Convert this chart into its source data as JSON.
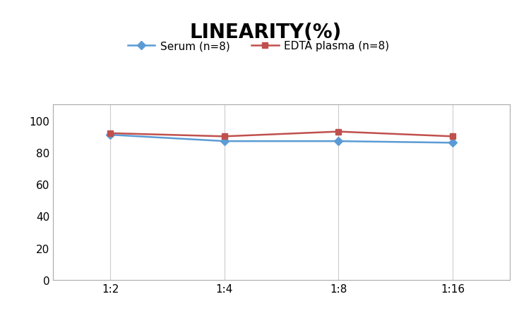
{
  "title": "LINEARITY(%)",
  "x_labels": [
    "1:2",
    "1:4",
    "1:8",
    "1:16"
  ],
  "x_positions": [
    0,
    1,
    2,
    3
  ],
  "serum_values": [
    91,
    87,
    87,
    86
  ],
  "edta_values": [
    92,
    90,
    93,
    90
  ],
  "serum_label": "Serum (n=8)",
  "edta_label": "EDTA plasma (n=8)",
  "serum_color": "#5b9bd5",
  "edta_color": "#c0504d",
  "ylim": [
    0,
    110
  ],
  "yticks": [
    0,
    20,
    40,
    60,
    80,
    100
  ],
  "title_fontsize": 20,
  "legend_fontsize": 11,
  "tick_fontsize": 11,
  "background_color": "#ffffff",
  "grid_color": "#cccccc"
}
